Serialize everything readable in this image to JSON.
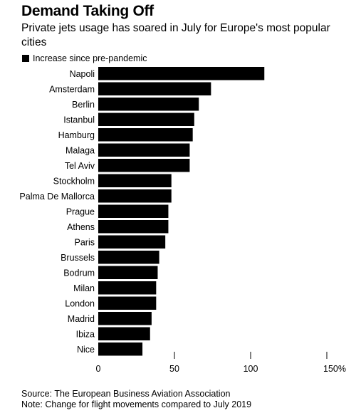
{
  "header": {
    "title": "Demand Taking Off",
    "subtitle": "Private jets usage has soared in July for Europe's most popular cities"
  },
  "legend": {
    "label": "Increase since pre-pandemic",
    "color": "#000000"
  },
  "footer": {
    "source": "Source: The European Business Aviation Association",
    "note": "Note: Change for flight movements compared to July 2019"
  },
  "chart_data": {
    "type": "bar",
    "orientation": "horizontal",
    "title": "Demand Taking Off",
    "subtitle": "Private jets usage has soared in July for Europe's most popular cities",
    "categories": [
      "Napoli",
      "Amsterdam",
      "Berlin",
      "Istanbul",
      "Hamburg",
      "Malaga",
      "Tel Aviv",
      "Stockholm",
      "Palma De Mallorca",
      "Prague",
      "Athens",
      "Paris",
      "Brussels",
      "Bodrum",
      "Milan",
      "London",
      "Madrid",
      "Ibiza",
      "Nice"
    ],
    "series": [
      {
        "name": "Increase since pre-pandemic",
        "values": [
          109,
          74,
          66,
          63,
          62,
          60,
          60,
          48,
          48,
          46,
          46,
          44,
          40,
          39,
          38,
          38,
          35,
          34,
          29
        ]
      }
    ],
    "xlim": [
      0,
      150
    ],
    "xticks": [
      0,
      50,
      100,
      150
    ],
    "xtick_labels": [
      "0",
      "50",
      "100",
      "150%"
    ],
    "grid": false,
    "legend_position": "top-left",
    "bar_color": "#000000"
  }
}
